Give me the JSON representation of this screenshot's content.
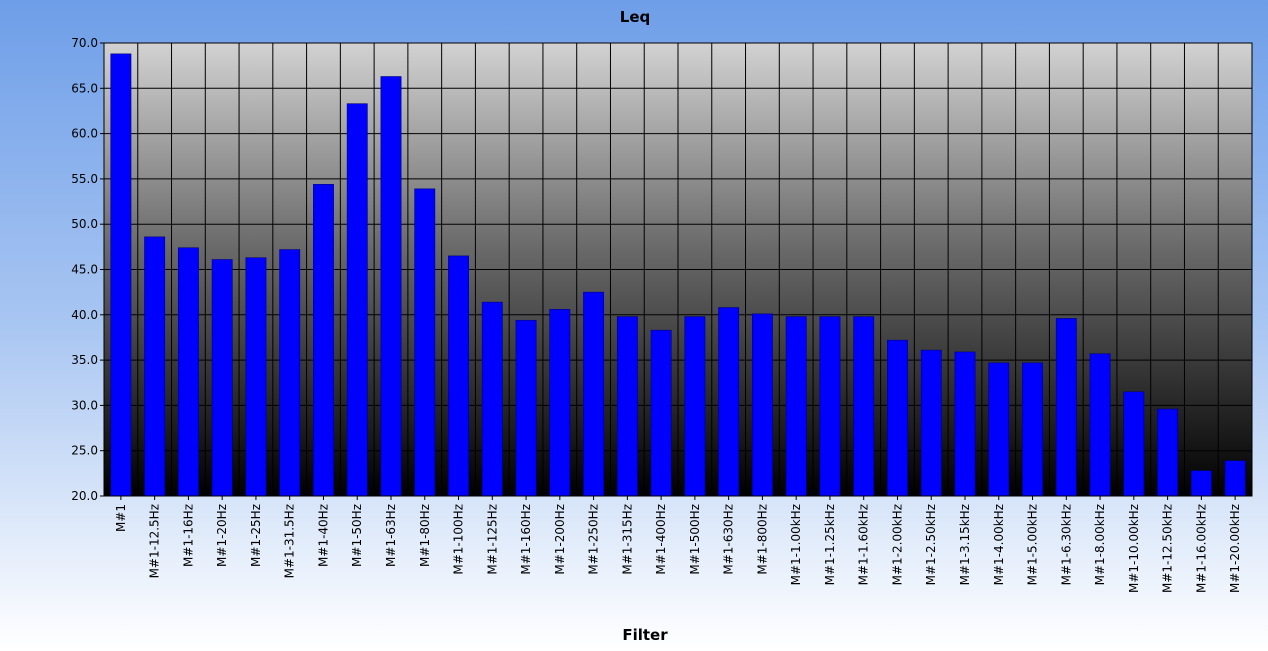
{
  "chart_data": {
    "type": "bar",
    "title": "Leq",
    "xlabel": "Filter",
    "ylabel": "",
    "ylim": [
      20,
      70
    ],
    "yticks": [
      "20.0",
      "25.0",
      "30.0",
      "35.0",
      "40.0",
      "45.0",
      "50.0",
      "55.0",
      "60.0",
      "65.0",
      "70.0"
    ],
    "grid": true,
    "categories": [
      "M#1",
      "M#1-12.5Hz",
      "M#1-16Hz",
      "M#1-20Hz",
      "M#1-25Hz",
      "M#1-31.5Hz",
      "M#1-40Hz",
      "M#1-50Hz",
      "M#1-63Hz",
      "M#1-80Hz",
      "M#1-100Hz",
      "M#1-125Hz",
      "M#1-160Hz",
      "M#1-200Hz",
      "M#1-250Hz",
      "M#1-315Hz",
      "M#1-400Hz",
      "M#1-500Hz",
      "M#1-630Hz",
      "M#1-800Hz",
      "M#1-1.00kHz",
      "M#1-1.25kHz",
      "M#1-1.60kHz",
      "M#1-2.00kHz",
      "M#1-2.50kHz",
      "M#1-3.15kHz",
      "M#1-4.00kHz",
      "M#1-5.00kHz",
      "M#1-6.30kHz",
      "M#1-8.00kHz",
      "M#1-10.00kHz",
      "M#1-12.50kHz",
      "M#1-16.00kHz",
      "M#1-20.00kHz"
    ],
    "values": [
      68.8,
      48.6,
      47.4,
      46.1,
      46.3,
      47.2,
      54.4,
      63.3,
      66.3,
      53.9,
      46.5,
      41.4,
      39.4,
      40.6,
      42.5,
      39.8,
      38.3,
      39.8,
      40.8,
      40.1,
      39.8,
      39.8,
      39.8,
      37.2,
      36.1,
      35.9,
      34.7,
      34.7,
      39.6,
      35.7,
      31.5,
      29.6,
      22.8,
      23.9
    ],
    "colors": {
      "bar": "#0000ff",
      "bar_edge": "#00007a",
      "grid": "#000000"
    }
  }
}
